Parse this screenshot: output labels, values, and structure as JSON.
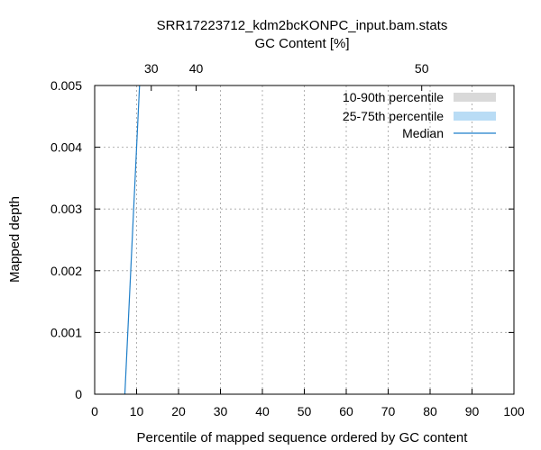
{
  "chart_data": {
    "type": "line",
    "title": "SRR17223712_kdm2bcKONPC_input.bam.stats",
    "x2label": "GC Content [%]",
    "xlabel": "Percentile of mapped sequence ordered by GC content",
    "ylabel": "Mapped depth",
    "xlim": [
      0,
      100
    ],
    "ylim": [
      0,
      0.005
    ],
    "xticks": [
      "0",
      "10",
      "20",
      "30",
      "40",
      "50",
      "60",
      "70",
      "80",
      "90",
      "100"
    ],
    "yticks": [
      "0",
      "0.001",
      "0.002",
      "0.003",
      "0.004",
      "0.005"
    ],
    "x2ticks": [
      {
        "label": "30",
        "x": 13.5
      },
      {
        "label": "40",
        "x": 24.2
      },
      {
        "label": "50",
        "x": 78.0
      }
    ],
    "grid": true,
    "legend_position": "top-right",
    "series": [
      {
        "name": "10-90th percentile",
        "kind": "band",
        "color": "#d9d9d9",
        "points": []
      },
      {
        "name": "25-75th percentile",
        "kind": "band",
        "color": "#b9dcf5",
        "points": []
      },
      {
        "name": "Median",
        "kind": "line",
        "color": "#1f7fc9",
        "points": [
          [
            7.2,
            0.0
          ],
          [
            10.7,
            0.005
          ]
        ]
      }
    ]
  }
}
